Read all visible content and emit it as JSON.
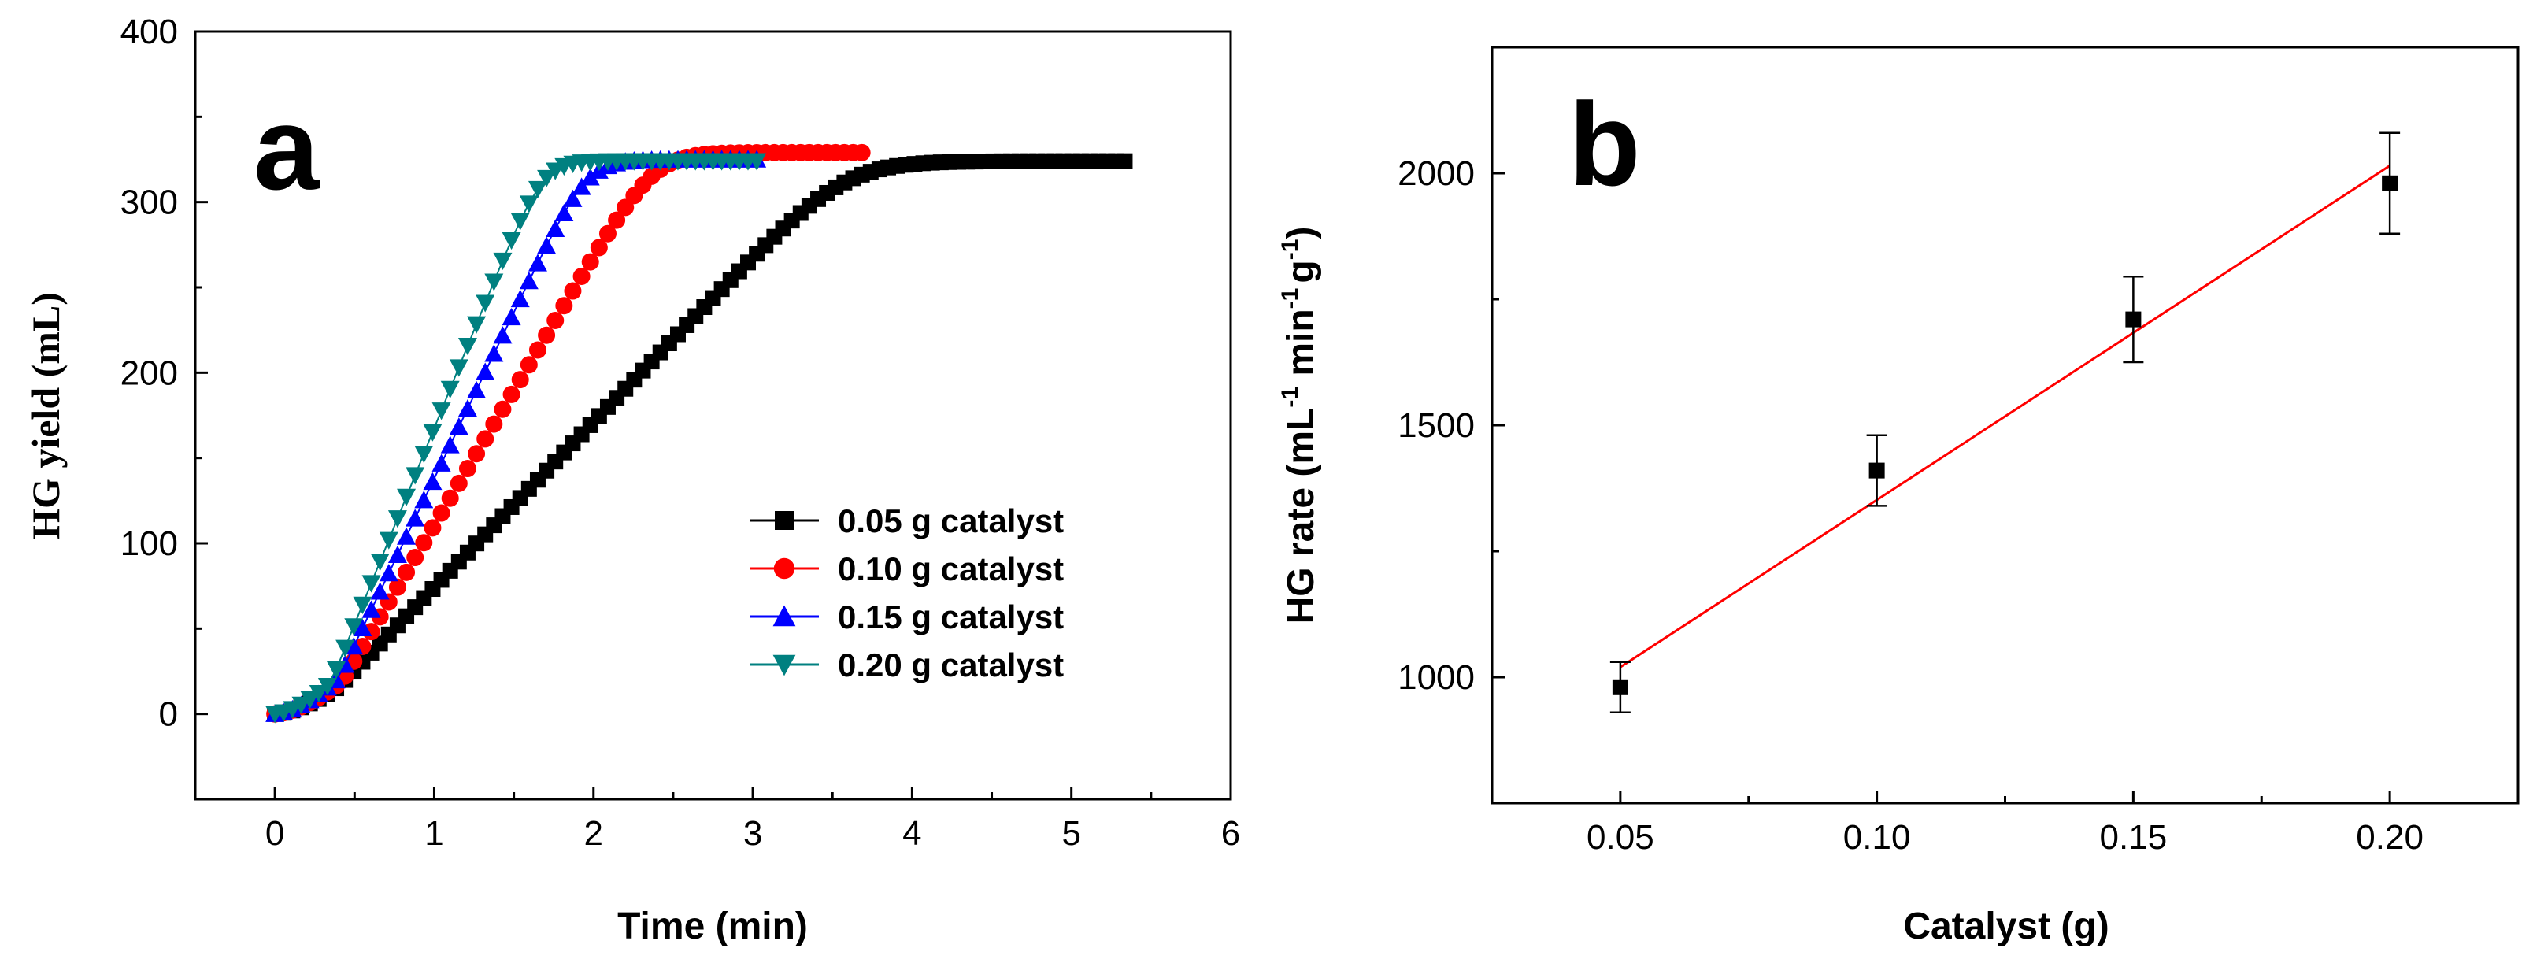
{
  "chart_data": [
    {
      "id": "a",
      "type": "scatter",
      "panel_label": "a",
      "title": "",
      "xlabel": "Time (min)",
      "ylabel": "HG yield (mL)",
      "xlim": [
        -0.5,
        6
      ],
      "ylim": [
        -50,
        400
      ],
      "xticks": [
        0,
        1,
        2,
        3,
        4,
        5,
        6
      ],
      "yticks": [
        0,
        100,
        200,
        300,
        400
      ],
      "tick_labels_x": [
        "0",
        "1",
        "2",
        "3",
        "4",
        "5",
        "6"
      ],
      "tick_labels_y": [
        "0",
        "100",
        "200",
        "300",
        "400"
      ],
      "legend_position": "center-right",
      "series": [
        {
          "name": "0.05 g catalyst",
          "color": "#000000",
          "marker": "square",
          "curve": {
            "t_end": 5.38,
            "plateau": 324,
            "t_sat": 4.25,
            "slope": 97,
            "t_lag": 0.4,
            "v_lag": 16
          }
        },
        {
          "name": "0.10 g catalyst",
          "color": "#ff0000",
          "marker": "circle",
          "curve": {
            "t_end": 3.7,
            "plateau": 329,
            "t_sat": 2.75,
            "slope": 158,
            "t_lag": 0.42,
            "v_lag": 19
          }
        },
        {
          "name": "0.15 g catalyst",
          "color": "#0000ff",
          "marker": "triangle-up",
          "curve": {
            "t_end": 3.05,
            "plateau": 325,
            "t_sat": 2.25,
            "slope": 195,
            "t_lag": 0.4,
            "v_lag": 21
          }
        },
        {
          "name": "0.20 g catalyst",
          "color": "#008080",
          "marker": "triangle-down",
          "curve": {
            "t_end": 3.05,
            "plateau": 324,
            "t_sat": 1.85,
            "slope": 230,
            "t_lag": 0.35,
            "v_lag": 18
          }
        }
      ]
    },
    {
      "id": "b",
      "type": "scatter",
      "panel_label": "b",
      "title": "",
      "xlabel": "Catalyst (g)",
      "ylabel_main": "HG rate (mL",
      "ylabel_sup1": "-1",
      "ylabel_mid": " min",
      "ylabel_sup2": "-1",
      "ylabel_g": "g",
      "ylabel_sup3": "-1",
      "ylabel_end": ")",
      "xlim": [
        0.025,
        0.225
      ],
      "ylim": [
        750,
        2250
      ],
      "xticks": [
        0.05,
        0.1,
        0.15,
        0.2
      ],
      "yticks": [
        1000,
        1500,
        2000
      ],
      "tick_labels_x": [
        "0.05",
        "0.10",
        "0.15",
        "0.20"
      ],
      "tick_labels_y": [
        "1000",
        "1500",
        "2000"
      ],
      "points": [
        {
          "x": 0.05,
          "y": 980,
          "err": 50
        },
        {
          "x": 0.1,
          "y": 1410,
          "err": 70
        },
        {
          "x": 0.15,
          "y": 1710,
          "err": 85
        },
        {
          "x": 0.2,
          "y": 1980,
          "err": 100
        }
      ],
      "fit": {
        "x": [
          0.05,
          0.2
        ],
        "y": [
          1020,
          2015
        ],
        "color": "#ff0000"
      }
    }
  ]
}
